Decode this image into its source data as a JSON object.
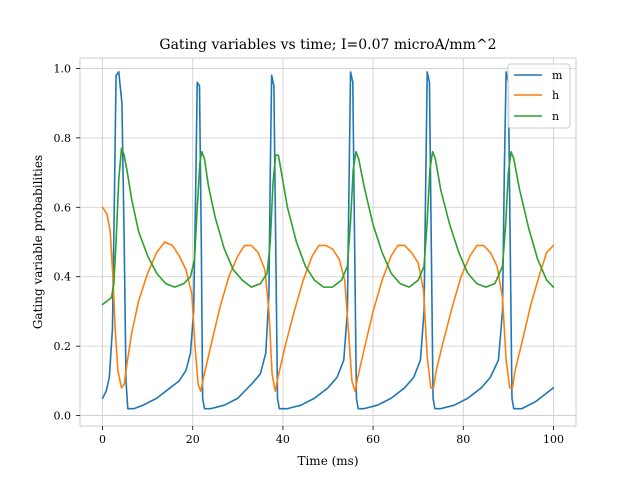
{
  "chart_data": {
    "type": "line",
    "title": "Gating variables vs time; I=0.07 microA/mm^2",
    "xlabel": "Time (ms)",
    "ylabel": "Gating variable probabilities",
    "xlim": [
      -5,
      105
    ],
    "ylim": [
      -0.03,
      1.03
    ],
    "x_ticks": [
      0,
      20,
      40,
      60,
      80,
      100
    ],
    "y_ticks": [
      0.0,
      0.2,
      0.4,
      0.6,
      0.8,
      1.0
    ],
    "x_tick_labels": [
      "0",
      "20",
      "40",
      "60",
      "80",
      "100"
    ],
    "y_tick_labels": [
      "0.0",
      "0.2",
      "0.4",
      "0.6",
      "0.8",
      "1.0"
    ],
    "grid": true,
    "legend_position": "top-right",
    "spike_times_ms": [
      3.0,
      21.0,
      37.5,
      55.0,
      72.0,
      89.5
    ],
    "series": [
      {
        "name": "m",
        "color": "#1f77b4",
        "points": [
          [
            0,
            0.05
          ],
          [
            0.8,
            0.07
          ],
          [
            1.5,
            0.11
          ],
          [
            2.2,
            0.25
          ],
          [
            2.6,
            0.6
          ],
          [
            3.0,
            0.98
          ],
          [
            3.6,
            0.99
          ],
          [
            4.3,
            0.9
          ],
          [
            4.8,
            0.5
          ],
          [
            5.2,
            0.1
          ],
          [
            5.6,
            0.02
          ],
          [
            7,
            0.02
          ],
          [
            9,
            0.03
          ],
          [
            12,
            0.05
          ],
          [
            15,
            0.08
          ],
          [
            17,
            0.1
          ],
          [
            18.5,
            0.13
          ],
          [
            19.5,
            0.18
          ],
          [
            20.2,
            0.3
          ],
          [
            20.6,
            0.6
          ],
          [
            21.0,
            0.96
          ],
          [
            21.5,
            0.95
          ],
          [
            21.9,
            0.5
          ],
          [
            22.2,
            0.05
          ],
          [
            22.6,
            0.02
          ],
          [
            24,
            0.02
          ],
          [
            27,
            0.03
          ],
          [
            30,
            0.05
          ],
          [
            33,
            0.09
          ],
          [
            35,
            0.12
          ],
          [
            36.2,
            0.18
          ],
          [
            36.9,
            0.35
          ],
          [
            37.2,
            0.7
          ],
          [
            37.5,
            0.98
          ],
          [
            38.0,
            0.95
          ],
          [
            38.4,
            0.5
          ],
          [
            38.8,
            0.05
          ],
          [
            39.2,
            0.02
          ],
          [
            41,
            0.02
          ],
          [
            44,
            0.03
          ],
          [
            47,
            0.05
          ],
          [
            50,
            0.08
          ],
          [
            52,
            0.11
          ],
          [
            53.5,
            0.16
          ],
          [
            54.3,
            0.3
          ],
          [
            54.7,
            0.7
          ],
          [
            55.0,
            0.99
          ],
          [
            55.5,
            0.96
          ],
          [
            55.9,
            0.5
          ],
          [
            56.3,
            0.05
          ],
          [
            56.7,
            0.02
          ],
          [
            58,
            0.02
          ],
          [
            61,
            0.03
          ],
          [
            64,
            0.05
          ],
          [
            67,
            0.08
          ],
          [
            69,
            0.11
          ],
          [
            70.5,
            0.16
          ],
          [
            71.3,
            0.3
          ],
          [
            71.7,
            0.7
          ],
          [
            72.0,
            0.99
          ],
          [
            72.5,
            0.96
          ],
          [
            72.9,
            0.5
          ],
          [
            73.3,
            0.05
          ],
          [
            73.7,
            0.02
          ],
          [
            75,
            0.02
          ],
          [
            78,
            0.03
          ],
          [
            81,
            0.05
          ],
          [
            84,
            0.08
          ],
          [
            86,
            0.11
          ],
          [
            87.8,
            0.16
          ],
          [
            88.7,
            0.3
          ],
          [
            89.1,
            0.7
          ],
          [
            89.5,
            0.99
          ],
          [
            90.0,
            0.96
          ],
          [
            90.4,
            0.5
          ],
          [
            90.8,
            0.05
          ],
          [
            91.2,
            0.02
          ],
          [
            93,
            0.02
          ],
          [
            96,
            0.04
          ],
          [
            98,
            0.06
          ],
          [
            100,
            0.08
          ]
        ]
      },
      {
        "name": "h",
        "color": "#ff7f0e",
        "points": [
          [
            0,
            0.6
          ],
          [
            1.0,
            0.58
          ],
          [
            1.7,
            0.53
          ],
          [
            2.3,
            0.4
          ],
          [
            2.8,
            0.25
          ],
          [
            3.4,
            0.13
          ],
          [
            4.2,
            0.08
          ],
          [
            4.8,
            0.09
          ],
          [
            5.3,
            0.14
          ],
          [
            6.5,
            0.24
          ],
          [
            8,
            0.33
          ],
          [
            10,
            0.41
          ],
          [
            12,
            0.47
          ],
          [
            13.8,
            0.5
          ],
          [
            15.5,
            0.49
          ],
          [
            17,
            0.46
          ],
          [
            18.5,
            0.42
          ],
          [
            19.8,
            0.35
          ],
          [
            20.5,
            0.2
          ],
          [
            21.2,
            0.09
          ],
          [
            21.8,
            0.07
          ],
          [
            22.4,
            0.11
          ],
          [
            24,
            0.2
          ],
          [
            26,
            0.31
          ],
          [
            28,
            0.4
          ],
          [
            30,
            0.46
          ],
          [
            31.5,
            0.49
          ],
          [
            33,
            0.49
          ],
          [
            34.5,
            0.47
          ],
          [
            36,
            0.42
          ],
          [
            36.9,
            0.3
          ],
          [
            37.6,
            0.12
          ],
          [
            38.3,
            0.07
          ],
          [
            38.9,
            0.11
          ],
          [
            40.5,
            0.2
          ],
          [
            42.5,
            0.3
          ],
          [
            44.5,
            0.39
          ],
          [
            46.5,
            0.46
          ],
          [
            48,
            0.49
          ],
          [
            49.5,
            0.49
          ],
          [
            51,
            0.48
          ],
          [
            52.5,
            0.45
          ],
          [
            53.7,
            0.39
          ],
          [
            54.5,
            0.25
          ],
          [
            55.3,
            0.1
          ],
          [
            56,
            0.07
          ],
          [
            56.6,
            0.11
          ],
          [
            58,
            0.19
          ],
          [
            60,
            0.3
          ],
          [
            62,
            0.39
          ],
          [
            64,
            0.46
          ],
          [
            65.5,
            0.49
          ],
          [
            67,
            0.49
          ],
          [
            68.5,
            0.47
          ],
          [
            70,
            0.44
          ],
          [
            71.2,
            0.36
          ],
          [
            72,
            0.17
          ],
          [
            72.8,
            0.08
          ],
          [
            73.4,
            0.08
          ],
          [
            74,
            0.13
          ],
          [
            75.5,
            0.21
          ],
          [
            77.5,
            0.31
          ],
          [
            79.5,
            0.4
          ],
          [
            81.5,
            0.46
          ],
          [
            83,
            0.49
          ],
          [
            84.5,
            0.49
          ],
          [
            86,
            0.47
          ],
          [
            87.5,
            0.43
          ],
          [
            88.7,
            0.34
          ],
          [
            89.5,
            0.16
          ],
          [
            90.3,
            0.08
          ],
          [
            90.9,
            0.08
          ],
          [
            91.5,
            0.13
          ],
          [
            93,
            0.21
          ],
          [
            95,
            0.32
          ],
          [
            97,
            0.41
          ],
          [
            98.5,
            0.47
          ],
          [
            100,
            0.49
          ]
        ]
      },
      {
        "name": "n",
        "color": "#2ca02c",
        "points": [
          [
            0,
            0.32
          ],
          [
            1,
            0.33
          ],
          [
            2,
            0.34
          ],
          [
            2.5,
            0.38
          ],
          [
            3.0,
            0.5
          ],
          [
            3.6,
            0.68
          ],
          [
            4.2,
            0.77
          ],
          [
            4.8,
            0.75
          ],
          [
            5.5,
            0.7
          ],
          [
            6.5,
            0.62
          ],
          [
            8,
            0.53
          ],
          [
            10,
            0.46
          ],
          [
            12,
            0.41
          ],
          [
            14,
            0.38
          ],
          [
            16,
            0.37
          ],
          [
            18,
            0.38
          ],
          [
            19.5,
            0.4
          ],
          [
            20.4,
            0.45
          ],
          [
            21.0,
            0.6
          ],
          [
            21.6,
            0.73
          ],
          [
            22.0,
            0.76
          ],
          [
            22.6,
            0.74
          ],
          [
            23.5,
            0.66
          ],
          [
            25,
            0.57
          ],
          [
            27,
            0.48
          ],
          [
            29,
            0.42
          ],
          [
            31,
            0.39
          ],
          [
            33,
            0.37
          ],
          [
            35,
            0.38
          ],
          [
            36.5,
            0.41
          ],
          [
            37.2,
            0.5
          ],
          [
            37.8,
            0.67
          ],
          [
            38.4,
            0.75
          ],
          [
            39,
            0.75
          ],
          [
            39.8,
            0.69
          ],
          [
            41,
            0.6
          ],
          [
            43,
            0.5
          ],
          [
            45,
            0.43
          ],
          [
            47,
            0.39
          ],
          [
            49,
            0.37
          ],
          [
            51,
            0.37
          ],
          [
            53,
            0.39
          ],
          [
            54.3,
            0.43
          ],
          [
            55.0,
            0.56
          ],
          [
            55.6,
            0.71
          ],
          [
            56.2,
            0.76
          ],
          [
            56.8,
            0.74
          ],
          [
            58,
            0.66
          ],
          [
            60,
            0.55
          ],
          [
            62,
            0.47
          ],
          [
            64,
            0.41
          ],
          [
            66,
            0.38
          ],
          [
            68,
            0.37
          ],
          [
            70,
            0.39
          ],
          [
            71.3,
            0.43
          ],
          [
            72.0,
            0.56
          ],
          [
            72.6,
            0.71
          ],
          [
            73.2,
            0.76
          ],
          [
            73.8,
            0.74
          ],
          [
            75,
            0.65
          ],
          [
            77,
            0.55
          ],
          [
            79,
            0.47
          ],
          [
            81,
            0.41
          ],
          [
            83,
            0.38
          ],
          [
            85,
            0.37
          ],
          [
            87,
            0.38
          ],
          [
            88.7,
            0.43
          ],
          [
            89.4,
            0.55
          ],
          [
            90,
            0.7
          ],
          [
            90.6,
            0.76
          ],
          [
            91.2,
            0.74
          ],
          [
            92.5,
            0.65
          ],
          [
            94.5,
            0.54
          ],
          [
            96.5,
            0.45
          ],
          [
            98.5,
            0.39
          ],
          [
            100,
            0.37
          ]
        ]
      }
    ]
  }
}
